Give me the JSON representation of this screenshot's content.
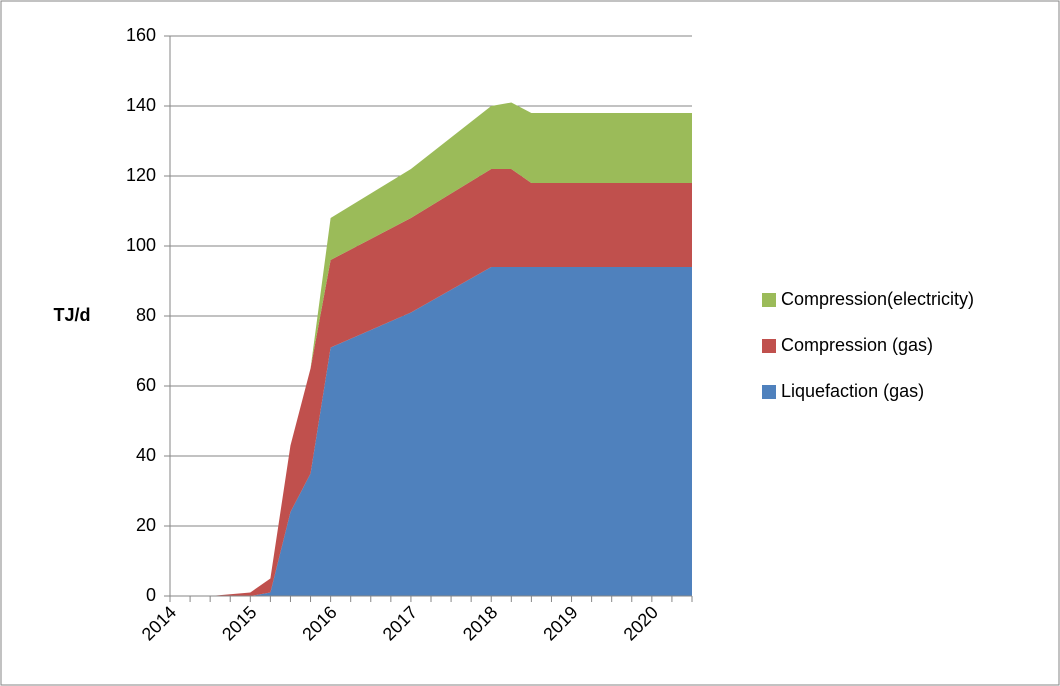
{
  "chart_data": {
    "type": "stacked_area",
    "y_label": "TJ/d",
    "categories": [
      "2014",
      null,
      null,
      null,
      "2015",
      null,
      null,
      null,
      "2016",
      null,
      null,
      null,
      "2017",
      null,
      null,
      null,
      "2018",
      null,
      null,
      null,
      "2019",
      null,
      null,
      null,
      "2020",
      null,
      null
    ],
    "series": [
      {
        "name": "Liquefaction (gas)",
        "color": "#4f81bd",
        "values": [
          0,
          0,
          0,
          0,
          0,
          1,
          24,
          35,
          71,
          73.5,
          76,
          78.5,
          81,
          84.25,
          87.5,
          90.75,
          94,
          94,
          94,
          94,
          94,
          94,
          94,
          94,
          94,
          94,
          94
        ]
      },
      {
        "name": "Compression (gas)",
        "color": "#c0504d",
        "values": [
          0,
          0,
          0,
          0.5,
          1,
          4,
          19,
          30,
          25,
          25.5,
          26,
          26.5,
          27,
          27.25,
          27.5,
          27.75,
          28,
          28,
          24,
          24,
          24,
          24,
          24,
          24,
          24,
          24,
          24
        ]
      },
      {
        "name": "Compression(electricity)",
        "color": "#9bbb59",
        "values": [
          0,
          0,
          0,
          0,
          0,
          0,
          0,
          0,
          12,
          12.5,
          13,
          13.5,
          14,
          15,
          16,
          17,
          18,
          19,
          20,
          20,
          20,
          20,
          20,
          20,
          20,
          20,
          20
        ]
      }
    ],
    "ylim": [
      0,
      160
    ],
    "yticks": [
      0,
      20,
      40,
      60,
      80,
      100,
      120,
      140,
      160
    ],
    "grid": true
  }
}
